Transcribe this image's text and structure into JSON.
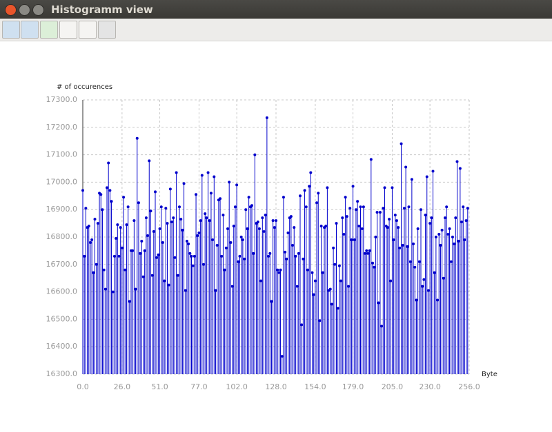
{
  "window": {
    "title": "Histogramm view"
  },
  "chart_data": {
    "type": "stem",
    "ylabel": "# of occurences",
    "xlabel": "Byte",
    "color": "#0000cc",
    "grid": true,
    "xlim": [
      0,
      256
    ],
    "ylim": [
      16300,
      17300
    ],
    "xticks": [
      {
        "value": 0,
        "label": "0.0"
      },
      {
        "value": 26,
        "label": "26.0"
      },
      {
        "value": 51,
        "label": "51.0"
      },
      {
        "value": 77,
        "label": "77.0"
      },
      {
        "value": 102,
        "label": "102.0"
      },
      {
        "value": 128,
        "label": "128.0"
      },
      {
        "value": 154,
        "label": "154.0"
      },
      {
        "value": 179,
        "label": "179.0"
      },
      {
        "value": 205,
        "label": "205.0"
      },
      {
        "value": 230,
        "label": "230.0"
      },
      {
        "value": 256,
        "label": "256.0"
      }
    ],
    "yticks": [
      {
        "value": 16300,
        "label": "16300.0"
      },
      {
        "value": 16400,
        "label": "16400.0"
      },
      {
        "value": 16500,
        "label": "16500.0"
      },
      {
        "value": 16600,
        "label": "16600.0"
      },
      {
        "value": 16700,
        "label": "16700.0"
      },
      {
        "value": 16800,
        "label": "16800.0"
      },
      {
        "value": 16900,
        "label": "16900.0"
      },
      {
        "value": 17000,
        "label": "17000.0"
      },
      {
        "value": 17100,
        "label": "17100.0"
      },
      {
        "value": 17200,
        "label": "17200.0"
      },
      {
        "value": 17300,
        "label": "17300.0"
      }
    ],
    "values": [
      16970,
      16730,
      16905,
      16835,
      16840,
      16780,
      16790,
      16670,
      16865,
      16700,
      16850,
      16960,
      16955,
      16900,
      16680,
      16610,
      16980,
      17070,
      16970,
      16930,
      16600,
      16730,
      16795,
      16845,
      16730,
      16835,
      16760,
      16945,
      16680,
      16845,
      16910,
      16565,
      16750,
      16750,
      16860,
      16610,
      17160,
      16925,
      16740,
      16785,
      16655,
      16750,
      16870,
      16805,
      17078,
      16895,
      16660,
      16820,
      16965,
      16725,
      16735,
      16830,
      16910,
      16780,
      16640,
      16905,
      16850,
      16625,
      16975,
      16855,
      16870,
      16725,
      17035,
      16660,
      16910,
      16865,
      16825,
      16995,
      16605,
      16785,
      16775,
      16740,
      16730,
      16695,
      16730,
      16955,
      16805,
      16815,
      16860,
      17025,
      16700,
      16885,
      16870,
      17035,
      16860,
      16960,
      16790,
      17020,
      16605,
      16770,
      16935,
      16940,
      16730,
      16880,
      16680,
      16760,
      16830,
      17000,
      16780,
      16620,
      16840,
      16910,
      16990,
      16710,
      16730,
      16800,
      16790,
      16720,
      16900,
      16830,
      16945,
      16910,
      16915,
      16740,
      17100,
      16850,
      16855,
      16830,
      16640,
      16870,
      16820,
      16880,
      17235,
      16730,
      16740,
      16565,
      16860,
      16835,
      16860,
      16680,
      16670,
      16680,
      16365,
      16945,
      16745,
      16720,
      16815,
      16870,
      16875,
      16770,
      16835,
      16730,
      16620,
      16740,
      16950,
      16480,
      16720,
      16970,
      16910,
      16680,
      16985,
      17035,
      16670,
      16590,
      16640,
      16925,
      16960,
      16495,
      16840,
      16670,
      16835,
      16840,
      16980,
      16605,
      16610,
      16555,
      16760,
      16700,
      16850,
      16540,
      16695,
      16640,
      16870,
      16810,
      16945,
      16875,
      16620,
      16905,
      16790,
      16985,
      16790,
      16900,
      16930,
      16840,
      16910,
      16830,
      16910,
      16740,
      16750,
      16740,
      16750,
      17083,
      16705,
      16690,
      16800,
      16890,
      16560,
      16890,
      16475,
      16905,
      16980,
      16840,
      16835,
      16865,
      16640,
      16980,
      16790,
      16880,
      16860,
      16835,
      16760,
      17140,
      16770,
      16905,
      17055,
      16765,
      16910,
      16710,
      17010,
      16775,
      16690,
      16570,
      16830,
      16710,
      16900,
      16620,
      16645,
      16880,
      17020,
      16605,
      16850,
      16870,
      17040,
      16670,
      16800,
      16570,
      16810,
      16770,
      16825,
      16650,
      16870,
      16910,
      16810,
      16830,
      16710,
      16800,
      16775,
      16870,
      17075,
      16785,
      17050,
      16855,
      16910,
      16790,
      16860,
      16905
    ]
  }
}
